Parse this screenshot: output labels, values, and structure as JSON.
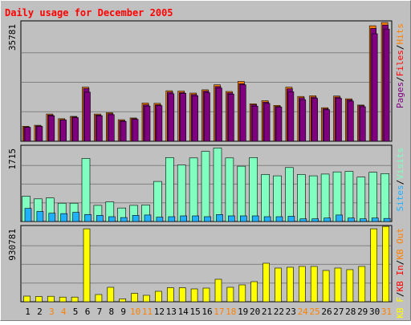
{
  "title": "Daily usage for December 2005",
  "colors": {
    "background": "#c0c0c0",
    "title": "#ff0000",
    "hits": "#ff8000",
    "files": "#7f007f",
    "pages": "#7f007f",
    "visits": "#80ffc0",
    "sites": "#20b0ff",
    "kb": "#ffff00",
    "weekend_label": "#ff8000",
    "weekday_label": "#000000"
  },
  "chart_data": [
    {
      "type": "bar",
      "panel": "hits-files-pages",
      "ylabel_max": "35781",
      "ylim": [
        0,
        35781
      ],
      "legend": [
        "Pages",
        "Files",
        "Hits"
      ],
      "legend_colors": [
        "#7f007f",
        "#ff0000",
        "#ff8000"
      ],
      "categories": [
        "1",
        "2",
        "3",
        "4",
        "5",
        "6",
        "7",
        "8",
        "9",
        "10",
        "11",
        "12",
        "13",
        "14",
        "15",
        "16",
        "17",
        "18",
        "19",
        "20",
        "21",
        "22",
        "23",
        "24",
        "25",
        "26",
        "27",
        "28",
        "29",
        "30",
        "31"
      ],
      "weekend_days": [
        "3",
        "4",
        "10",
        "11",
        "17",
        "18",
        "24",
        "25",
        "31"
      ],
      "series": [
        {
          "name": "Hits",
          "values": [
            4500,
            4800,
            8200,
            6800,
            7500,
            16300,
            8200,
            8600,
            6500,
            7000,
            11500,
            11400,
            15200,
            15100,
            14500,
            15500,
            17000,
            15000,
            18000,
            11300,
            12200,
            10800,
            16300,
            13500,
            13700,
            10100,
            13600,
            12800,
            10900,
            34800,
            35781
          ]
        },
        {
          "name": "Files",
          "values": [
            4300,
            4600,
            7900,
            6500,
            7300,
            15900,
            7900,
            8300,
            6200,
            6800,
            11000,
            11000,
            14800,
            14700,
            14100,
            15100,
            16500,
            14600,
            17300,
            11000,
            11800,
            10500,
            15800,
            13100,
            13300,
            9800,
            13300,
            12500,
            10700,
            34000,
            35000
          ]
        },
        {
          "name": "Pages",
          "values": [
            4200,
            4500,
            7700,
            6400,
            7100,
            14800,
            7700,
            8000,
            6000,
            6600,
            10600,
            10700,
            14300,
            14400,
            13700,
            14600,
            16000,
            14200,
            17000,
            10600,
            11400,
            10300,
            14900,
            12500,
            12900,
            9500,
            12900,
            12100,
            10400,
            32400,
            33800
          ]
        }
      ]
    },
    {
      "type": "bar",
      "panel": "visits-sites",
      "ylabel_max": "1715",
      "ylim": [
        0,
        1715
      ],
      "legend": [
        "Sites",
        "Visits"
      ],
      "legend_colors": [
        "#20b0ff",
        "#80ffc0"
      ],
      "categories": [
        "1",
        "2",
        "3",
        "4",
        "5",
        "6",
        "7",
        "8",
        "9",
        "10",
        "11",
        "12",
        "13",
        "14",
        "15",
        "16",
        "17",
        "18",
        "19",
        "20",
        "21",
        "22",
        "23",
        "24",
        "25",
        "26",
        "27",
        "28",
        "29",
        "30",
        "31"
      ],
      "series": [
        {
          "name": "Visits",
          "values": [
            580,
            520,
            540,
            420,
            420,
            1450,
            370,
            450,
            310,
            370,
            380,
            920,
            1470,
            1300,
            1460,
            1610,
            1690,
            1460,
            1270,
            1470,
            1080,
            1050,
            1240,
            1080,
            1050,
            1090,
            1140,
            1150,
            1020,
            1130,
            1100
          ]
        },
        {
          "name": "Sites",
          "values": [
            300,
            230,
            190,
            180,
            210,
            160,
            140,
            110,
            90,
            140,
            150,
            100,
            110,
            130,
            130,
            110,
            160,
            130,
            130,
            130,
            110,
            110,
            120,
            60,
            60,
            80,
            150,
            80,
            60,
            80,
            70
          ]
        }
      ]
    },
    {
      "type": "bar",
      "panel": "kbytes",
      "ylabel_max": "930781",
      "ylim": [
        0,
        930781
      ],
      "legend": [
        "KB F",
        "KB In",
        "KB Out"
      ],
      "legend_colors": [
        "#ffff00",
        "#ff0000",
        "#ff8000"
      ],
      "categories": [
        "1",
        "2",
        "3",
        "4",
        "5",
        "6",
        "7",
        "8",
        "9",
        "10",
        "11",
        "12",
        "13",
        "14",
        "15",
        "16",
        "17",
        "18",
        "19",
        "20",
        "21",
        "22",
        "23",
        "24",
        "25",
        "26",
        "27",
        "28",
        "29",
        "30",
        "31"
      ],
      "series": [
        {
          "name": "KB F",
          "values": [
            70000,
            65000,
            68000,
            58000,
            58000,
            910000,
            90000,
            180000,
            35000,
            105000,
            80000,
            130000,
            175000,
            175000,
            160000,
            170000,
            280000,
            180000,
            210000,
            250000,
            480000,
            420000,
            430000,
            440000,
            440000,
            390000,
            420000,
            400000,
            440000,
            910000,
            940000
          ]
        }
      ]
    }
  ]
}
